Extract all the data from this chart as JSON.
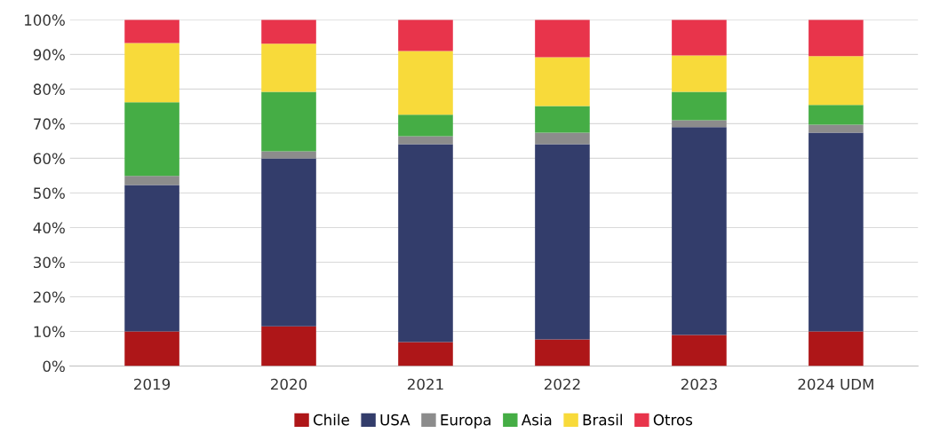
{
  "chart_data": {
    "type": "bar",
    "stacked": true,
    "categories": [
      "2019",
      "2020",
      "2021",
      "2022",
      "2023",
      "2024 UDM"
    ],
    "series": [
      {
        "name": "Chile",
        "color": "#ae1618",
        "values": [
          10,
          11.5,
          6.9,
          7.7,
          9,
          10
        ]
      },
      {
        "name": "USA",
        "color": "#333d6b",
        "values": [
          42.3,
          48.5,
          57.2,
          56.4,
          60,
          57.4
        ]
      },
      {
        "name": "Europa",
        "color": "#8c8c8c",
        "values": [
          2.6,
          2,
          2.3,
          3.3,
          2,
          2.3
        ]
      },
      {
        "name": "Asia",
        "color": "#45ad45",
        "values": [
          21.3,
          17.2,
          6.2,
          7.7,
          8.2,
          5.7
        ]
      },
      {
        "name": "Brasil",
        "color": "#f8da3a",
        "values": [
          17.1,
          13.9,
          18.4,
          14.1,
          10.5,
          14.1
        ]
      },
      {
        "name": "Otros",
        "color": "#e8344b",
        "values": [
          6.7,
          6.9,
          9,
          10.8,
          10.3,
          10.5
        ]
      }
    ],
    "ylim": [
      0,
      100
    ],
    "yticks": [
      {
        "value": 0,
        "label": "0%"
      },
      {
        "value": 10,
        "label": "10%"
      },
      {
        "value": 20,
        "label": "20%"
      },
      {
        "value": 30,
        "label": "30%"
      },
      {
        "value": 40,
        "label": "40%"
      },
      {
        "value": 50,
        "label": "50%"
      },
      {
        "value": 60,
        "label": "60%"
      },
      {
        "value": 70,
        "label": "70%"
      },
      {
        "value": 80,
        "label": "80%"
      },
      {
        "value": 90,
        "label": "90%"
      },
      {
        "value": 100,
        "label": "100%"
      }
    ],
    "grid": "y",
    "legend": "bottom"
  }
}
